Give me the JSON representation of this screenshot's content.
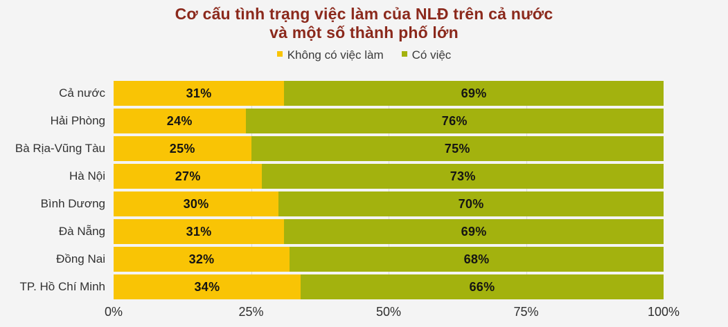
{
  "title": {
    "line1": "Cơ cấu tình trạng việc làm của NLĐ trên cả nước",
    "line2": "và một số thành phố lớn"
  },
  "legend": {
    "unemployed_label": "Không có việc làm",
    "employed_label": "Có việc"
  },
  "colors": {
    "unemployed": "#f9c405",
    "employed": "#a3b20e",
    "title_text": "#8b291c",
    "background": "#f4f4f4",
    "gridline": "#d9d9d9"
  },
  "x_axis": {
    "ticks": [
      "0%",
      "25%",
      "50%",
      "75%",
      "100%"
    ]
  },
  "chart_data": {
    "type": "bar",
    "orientation": "horizontal",
    "stacked": true,
    "title": "Cơ cấu tình trạng việc làm của NLĐ trên cả nước và một số thành phố lớn",
    "categories": [
      "Cả nước",
      "Hải Phòng",
      "Bà Rịa-Vũng Tàu",
      "Hà Nội",
      "Bình Dương",
      "Đà Nẵng",
      "Đồng Nai",
      "TP. Hồ Chí Minh"
    ],
    "series": [
      {
        "name": "Không có việc làm",
        "color": "#f9c405",
        "values": [
          31,
          24,
          25,
          27,
          30,
          31,
          32,
          34
        ]
      },
      {
        "name": "Có việc",
        "color": "#a3b20e",
        "values": [
          69,
          76,
          75,
          73,
          70,
          69,
          68,
          66
        ]
      }
    ],
    "xlim": [
      0,
      100
    ],
    "x_ticks": [
      "0%",
      "25%",
      "50%",
      "75%",
      "100%"
    ],
    "legend_position": "top",
    "grid": "vertical-25-50-75",
    "rows": [
      {
        "label": "Cả nước",
        "unemployed": 31,
        "employed": 69,
        "unemployed_label": "31%",
        "employed_label": "69%"
      },
      {
        "label": "Hải Phòng",
        "unemployed": 24,
        "employed": 76,
        "unemployed_label": "24%",
        "employed_label": "76%"
      },
      {
        "label": "Bà Rịa-Vũng Tàu",
        "unemployed": 25,
        "employed": 75,
        "unemployed_label": "25%",
        "employed_label": "75%"
      },
      {
        "label": "Hà Nội",
        "unemployed": 27,
        "employed": 73,
        "unemployed_label": "27%",
        "employed_label": "73%"
      },
      {
        "label": "Bình Dương",
        "unemployed": 30,
        "employed": 70,
        "unemployed_label": "30%",
        "employed_label": "70%"
      },
      {
        "label": "Đà Nẵng",
        "unemployed": 31,
        "employed": 69,
        "unemployed_label": "31%",
        "employed_label": "69%"
      },
      {
        "label": "Đồng Nai",
        "unemployed": 32,
        "employed": 68,
        "unemployed_label": "32%",
        "employed_label": "68%"
      },
      {
        "label": "TP. Hồ Chí Minh",
        "unemployed": 34,
        "employed": 66,
        "unemployed_label": "34%",
        "employed_label": "66%"
      }
    ]
  }
}
